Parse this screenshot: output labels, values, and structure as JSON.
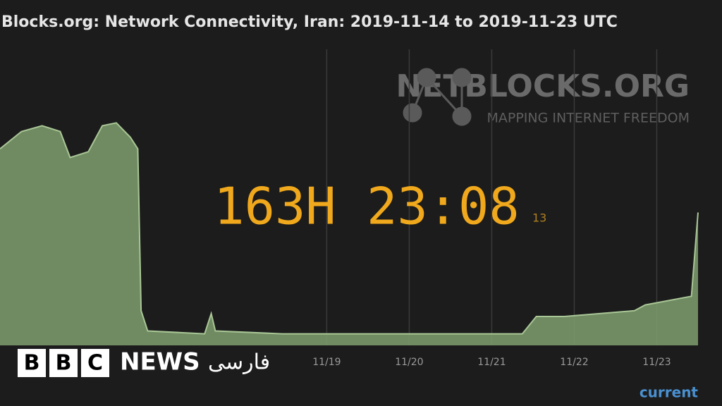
{
  "chart_data": {
    "type": "area",
    "title": "Blocks.org: Network Connectivity, Iran: 2019-11-14 to 2019-11-23 UTC",
    "x": [
      15.04,
      15.3,
      15.55,
      15.77,
      15.89,
      16.11,
      16.28,
      16.45,
      16.62,
      16.71,
      16.75,
      16.83,
      17.52,
      17.6,
      17.65,
      18.46,
      21.37,
      21.54,
      21.88,
      22.73,
      22.86,
      23.42,
      23.5
    ],
    "values": [
      68,
      74,
      76,
      74,
      65,
      67,
      76,
      77,
      72,
      68,
      12,
      5,
      4,
      11,
      5,
      4,
      4,
      10,
      10,
      12,
      14,
      17,
      46
    ],
    "color": "#7f9e6e",
    "xlim": [
      15.04,
      23.5
    ],
    "xticks": [
      {
        "value": 19,
        "label": "11/19"
      },
      {
        "value": 20,
        "label": "11/20"
      },
      {
        "value": 21,
        "label": "11/21"
      },
      {
        "value": 22,
        "label": "11/22"
      },
      {
        "value": 23,
        "label": "11/23"
      }
    ],
    "ylim": [
      0,
      100
    ],
    "grid": true,
    "watermark": "NETBLOCKS.ORG",
    "watermark_subtitle": "MAPPING INTERNET FREEDOM",
    "timer": "163H 23:08",
    "timer_note": "13",
    "legend_label": "current",
    "logo_letters": [
      "B",
      "B",
      "C"
    ],
    "logo_news": "NEWS",
    "logo_language": "فارسی"
  }
}
